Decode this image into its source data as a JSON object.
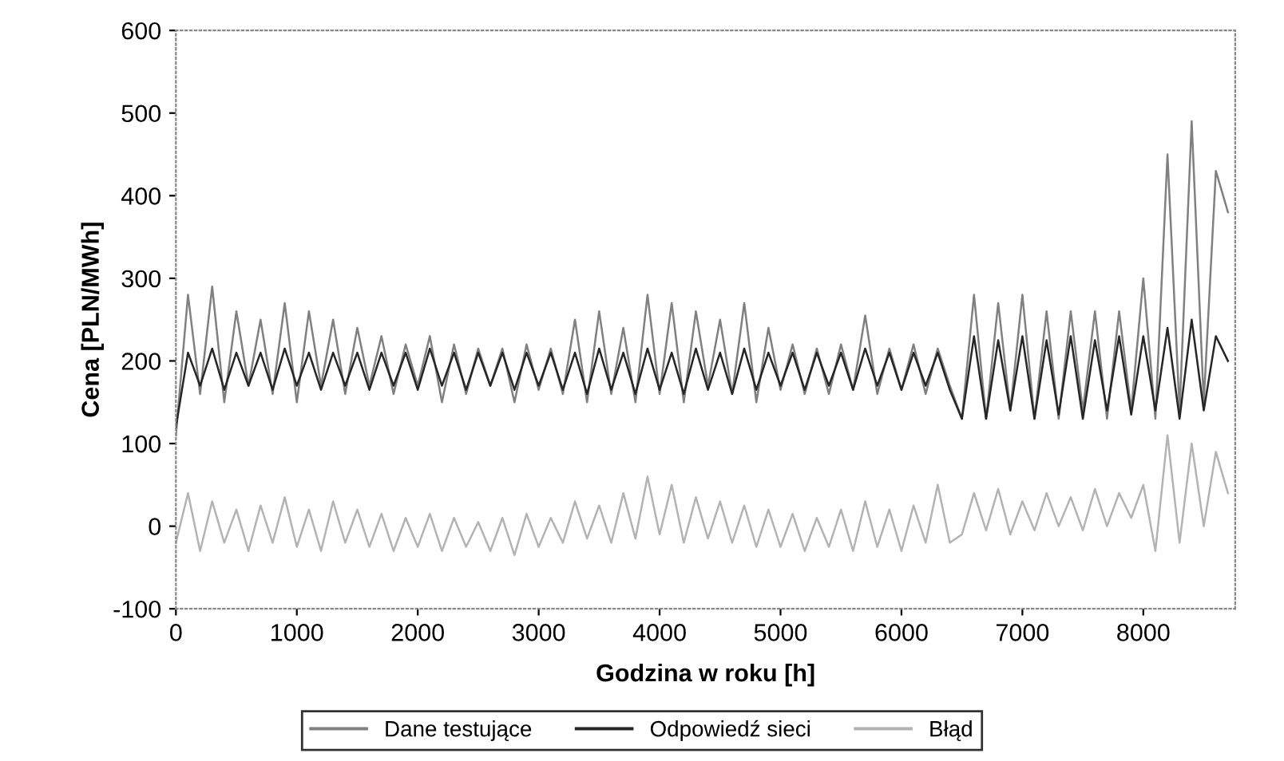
{
  "chart_data": {
    "type": "line",
    "xlabel": "Godzina w roku [h]",
    "ylabel": "Cena [PLN/MWh]",
    "xlim": [
      0,
      8760
    ],
    "xticks": [
      0,
      1000,
      2000,
      3000,
      4000,
      5000,
      6000,
      7000,
      8000
    ],
    "ylim": [
      -100,
      600
    ],
    "yticks": [
      -100,
      0,
      100,
      200,
      300,
      400,
      500,
      600
    ],
    "grid": false,
    "legend": "bottom",
    "marker": "none",
    "line_style": "solid",
    "x": [
      0,
      100,
      200,
      300,
      400,
      500,
      600,
      700,
      800,
      900,
      1000,
      1100,
      1200,
      1300,
      1400,
      1500,
      1600,
      1700,
      1800,
      1900,
      2000,
      2100,
      2200,
      2300,
      2400,
      2500,
      2600,
      2700,
      2800,
      2900,
      3000,
      3100,
      3200,
      3300,
      3400,
      3500,
      3600,
      3700,
      3800,
      3900,
      4000,
      4100,
      4200,
      4300,
      4400,
      4500,
      4600,
      4700,
      4800,
      4900,
      5000,
      5100,
      5200,
      5300,
      5400,
      5500,
      5600,
      5700,
      5800,
      5900,
      6000,
      6100,
      6200,
      6300,
      6400,
      6500,
      6600,
      6700,
      6800,
      6900,
      7000,
      7100,
      7200,
      7300,
      7400,
      7500,
      7600,
      7700,
      7800,
      7900,
      8000,
      8100,
      8200,
      8300,
      8400,
      8500,
      8600,
      8700
    ],
    "series": [
      {
        "name": "Dane testujące",
        "color": "#808080",
        "values": [
          110,
          280,
          160,
          290,
          150,
          260,
          170,
          250,
          160,
          270,
          150,
          260,
          170,
          250,
          160,
          240,
          170,
          230,
          160,
          220,
          170,
          230,
          150,
          220,
          160,
          215,
          170,
          215,
          150,
          220,
          165,
          215,
          160,
          250,
          150,
          260,
          160,
          240,
          150,
          280,
          160,
          270,
          150,
          260,
          170,
          250,
          160,
          270,
          150,
          240,
          165,
          220,
          160,
          215,
          160,
          220,
          165,
          255,
          160,
          215,
          165,
          220,
          160,
          215,
          170,
          130,
          280,
          130,
          270,
          140,
          280,
          130,
          260,
          130,
          260,
          140,
          260,
          130,
          260,
          140,
          300,
          130,
          450,
          140,
          490,
          150,
          430,
          380
        ]
      },
      {
        "name": "Odpowiedź sieci",
        "color": "#262626",
        "values": [
          120,
          210,
          170,
          215,
          165,
          210,
          170,
          210,
          165,
          215,
          170,
          210,
          165,
          210,
          170,
          210,
          165,
          210,
          170,
          210,
          165,
          215,
          170,
          210,
          165,
          210,
          170,
          210,
          165,
          210,
          170,
          210,
          165,
          210,
          160,
          215,
          165,
          210,
          160,
          215,
          165,
          210,
          160,
          215,
          165,
          210,
          160,
          215,
          165,
          210,
          170,
          210,
          165,
          210,
          170,
          210,
          165,
          215,
          170,
          210,
          165,
          210,
          170,
          210,
          165,
          130,
          230,
          130,
          225,
          140,
          230,
          130,
          225,
          135,
          230,
          130,
          225,
          140,
          230,
          135,
          230,
          140,
          240,
          130,
          250,
          140,
          230,
          200
        ]
      },
      {
        "name": "Błąd",
        "color": "#b3b3b3",
        "values": [
          -20,
          40,
          -30,
          30,
          -20,
          20,
          -30,
          25,
          -20,
          35,
          -25,
          20,
          -30,
          30,
          -20,
          20,
          -25,
          15,
          -30,
          10,
          -25,
          15,
          -30,
          10,
          -25,
          5,
          -30,
          10,
          -35,
          15,
          -25,
          10,
          -20,
          30,
          -15,
          25,
          -20,
          40,
          -15,
          60,
          -10,
          50,
          -20,
          35,
          -15,
          30,
          -20,
          25,
          -25,
          20,
          -25,
          15,
          -30,
          10,
          -25,
          20,
          -30,
          30,
          -25,
          20,
          -30,
          25,
          -20,
          50,
          -20,
          -10,
          40,
          -5,
          45,
          -10,
          30,
          -5,
          40,
          0,
          35,
          -5,
          45,
          0,
          40,
          10,
          50,
          -30,
          110,
          -20,
          100,
          0,
          90,
          40
        ]
      }
    ]
  }
}
